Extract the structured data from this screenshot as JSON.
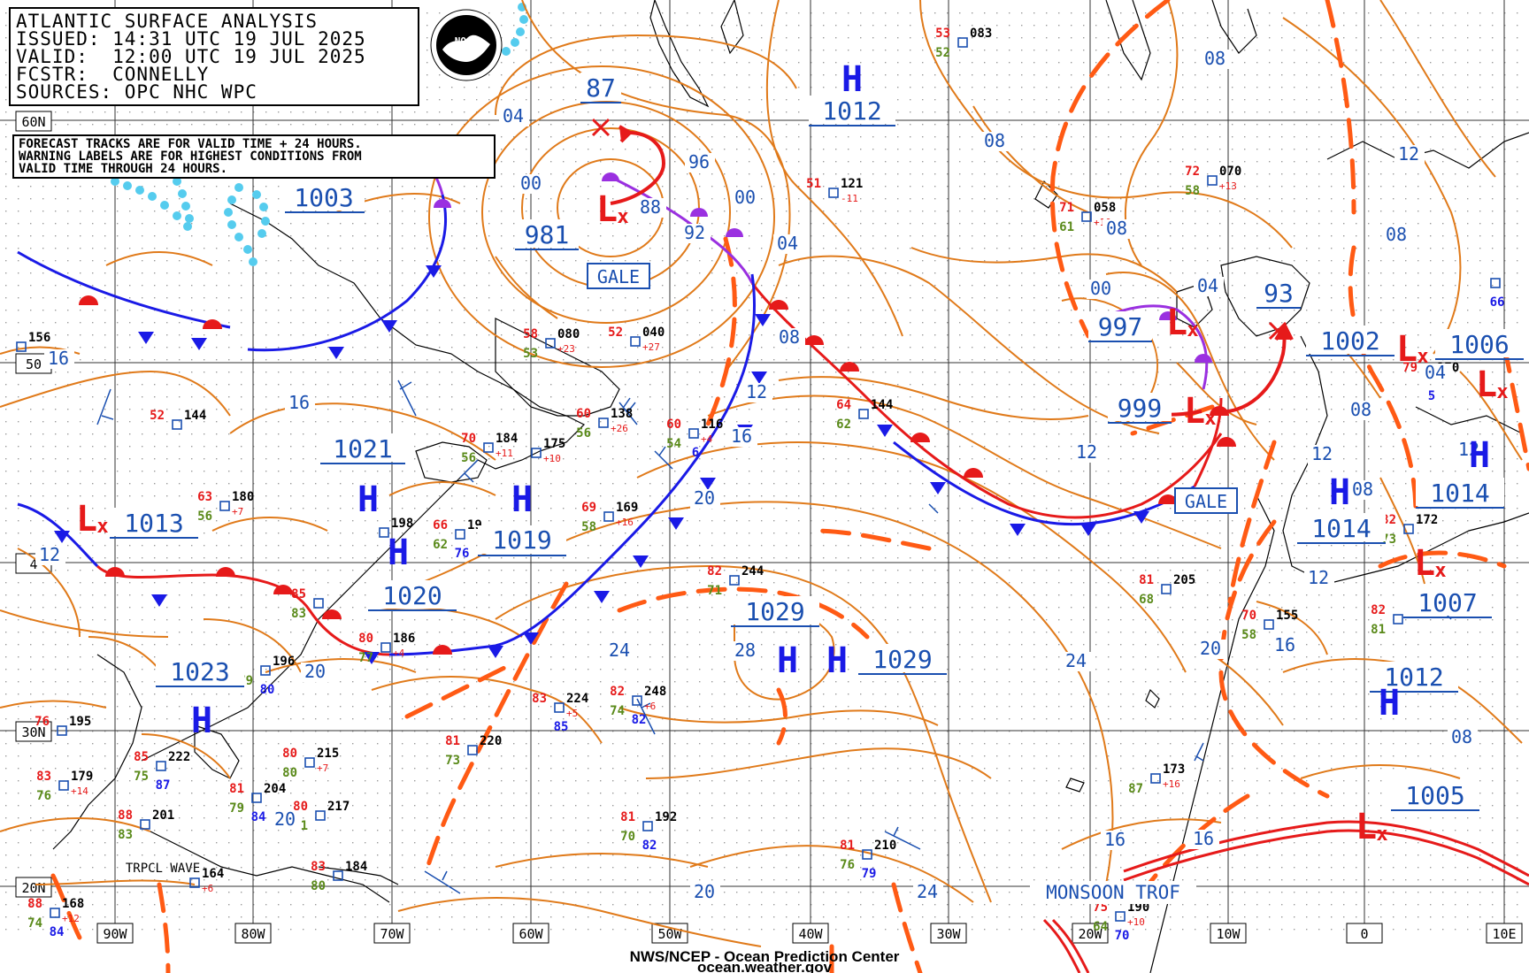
{
  "header": {
    "title": "ATLANTIC SURFACE ANALYSIS",
    "issued": "ISSUED: 14:31 UTC 19 JUL 2025",
    "valid": "VALID:  12:00 UTC 19 JUL 2025",
    "forecaster": "FCSTR:  CONNELLY",
    "sources": "SOURCES: OPC NHC WPC"
  },
  "note": {
    "line1": "FORECAST TRACKS ARE FOR VALID TIME + 24 HOURS.",
    "line2": "WARNING LABELS ARE FOR HIGHEST CONDITIONS FROM",
    "line3": "VALID TIME THROUGH 24 HOURS."
  },
  "footer": {
    "line1": "NWS/NCEP - Ocean Prediction Center",
    "line2": "ocean.weather.gov"
  },
  "logo": {
    "text": "NOAA"
  },
  "colors": {
    "isobar": "#e07a1a",
    "cold_front": "#1a1ae6",
    "warm_front": "#e61a1a",
    "occluded": "#9a30e0",
    "trough": "#ff5a14",
    "label_blue": "#1a4fb0",
    "pressure_center_blue": "#1a1ae6",
    "pressure_center_red": "#e61a1a",
    "ice_dots": "#55ccee"
  },
  "grid": {
    "lon_labels": [
      "90W",
      "80W",
      "70W",
      "60W",
      "50W",
      "40W",
      "30W",
      "20W",
      "10W",
      "0",
      "10E"
    ],
    "lat_labels": [
      "60N",
      "50",
      "4",
      "30N",
      "20N"
    ]
  },
  "highs": [
    {
      "id": "h1",
      "label": "H",
      "value": "1012"
    },
    {
      "id": "h2",
      "label": "H",
      "value": "1021"
    },
    {
      "id": "h3",
      "label": "H",
      "value": "1019"
    },
    {
      "id": "h4",
      "label": "H",
      "value": "1020"
    },
    {
      "id": "h5",
      "label": "H",
      "value": "1029"
    },
    {
      "id": "h6",
      "label": "H",
      "value": "1029"
    },
    {
      "id": "h7",
      "label": "H",
      "value": "1023"
    },
    {
      "id": "h8",
      "label": "H",
      "value": "1014"
    },
    {
      "id": "h9",
      "label": "H",
      "value": "1014"
    },
    {
      "id": "h10",
      "label": "H",
      "value": "1012"
    }
  ],
  "lows": [
    {
      "id": "l1",
      "label": "L",
      "value": "981"
    },
    {
      "id": "l2",
      "label": "L",
      "value": "997"
    },
    {
      "id": "l3",
      "label": "L",
      "value": "999"
    },
    {
      "id": "l4",
      "label": "L",
      "value": "1002"
    },
    {
      "id": "l5",
      "label": "L",
      "value": "1006"
    },
    {
      "id": "l6",
      "label": "L",
      "value": "1013"
    },
    {
      "id": "l7",
      "label": "L",
      "value": "1007"
    },
    {
      "id": "l8",
      "label": "L",
      "value": "1005"
    }
  ],
  "forecast_centers": [
    {
      "id": "f1",
      "value": "87"
    },
    {
      "id": "f2",
      "value": "93"
    },
    {
      "id": "f3",
      "value": "1003"
    }
  ],
  "warnings": [
    {
      "id": "w1",
      "label": "GALE"
    },
    {
      "id": "w2",
      "label": "GALE"
    }
  ],
  "features": {
    "monsoon": "MONSOON TROF",
    "tropical_wave": "TRPCL WAVE"
  },
  "isobar_labels": [
    "04",
    "00",
    "96",
    "88",
    "92",
    "00",
    "04",
    "08",
    "08",
    "12",
    "16",
    "16",
    "20",
    "24",
    "24",
    "28",
    "24",
    "20",
    "20",
    "20",
    "20",
    "16",
    "16",
    "12",
    "12",
    "12",
    "08",
    "08",
    "08",
    "04",
    "00",
    "12",
    "16",
    "20",
    "12",
    "16",
    "08",
    "04",
    "12",
    "08",
    "12",
    "08"
  ],
  "stations": [
    {
      "temp": "53",
      "pres": "083",
      "dew": "52"
    },
    {
      "temp": "51",
      "pres": "121",
      "tend": "-11"
    },
    {
      "temp": "71",
      "pres": "058",
      "tend": "+10",
      "dew": "61"
    },
    {
      "temp": "72",
      "pres": "070",
      "tend": "+13",
      "dew": "58"
    },
    {
      "temp": "58",
      "pres": "080",
      "tend": "+23",
      "dew": "53"
    },
    {
      "temp": "52",
      "pres": "040",
      "tend": "+27"
    },
    {
      "temp": "60",
      "pres": "138",
      "tend": "+26",
      "dew": "56"
    },
    {
      "temp": "60",
      "pres": "116",
      "tend": "+4",
      "dew": "54",
      "extra": "6"
    },
    {
      "temp": "64",
      "pres": "144",
      "dew": "62"
    },
    {
      "temp": "52",
      "pres": "144"
    },
    {
      "pres": "156"
    },
    {
      "temp": "63",
      "pres": "180",
      "tend": "+7",
      "dew": "56"
    },
    {
      "temp": "70",
      "pres": "184",
      "tend": "+11",
      "dew": "56"
    },
    {
      "pres": "175",
      "tend": "+10"
    },
    {
      "temp": "69",
      "pres": "169",
      "tend": "+16",
      "dew": "58"
    },
    {
      "temp": "66",
      "pres": "19",
      "dew": "62",
      "extra": "76"
    },
    {
      "pres": "198"
    },
    {
      "temp": "85",
      "dew": "83"
    },
    {
      "temp": "80",
      "pres": "186",
      "tend": "+4",
      "dew": "77"
    },
    {
      "temp": "82",
      "pres": "244",
      "dew": "71"
    },
    {
      "temp": "81",
      "pres": "205",
      "dew": "68"
    },
    {
      "temp": "70",
      "pres": "155",
      "dew": "58"
    },
    {
      "temp": "82",
      "pres": "172",
      "dew": "73"
    },
    {
      "temp": "82",
      "dew": "81"
    },
    {
      "temp": "76",
      "pres": "195"
    },
    {
      "pres": "196",
      "dew": "79",
      "extra": "80"
    },
    {
      "temp": "83",
      "pres": "224",
      "tend": "+5",
      "extra": "85"
    },
    {
      "temp": "82",
      "pres": "248",
      "tend": "+6",
      "dew": "74",
      "extra": "82"
    },
    {
      "temp": "81",
      "pres": "220",
      "dew": "73"
    },
    {
      "temp": "80",
      "pres": "215",
      "tend": "+7",
      "dew": "80"
    },
    {
      "temp": "85",
      "pres": "222",
      "dew": "75",
      "extra": "87"
    },
    {
      "temp": "83",
      "pres": "179",
      "tend": "+14",
      "dew": "76"
    },
    {
      "temp": "81",
      "pres": "204",
      "dew": "79",
      "extra": "84"
    },
    {
      "temp": "80",
      "pres": "217",
      "dew": "81"
    },
    {
      "temp": "88",
      "pres": "201",
      "dew": "83"
    },
    {
      "temp": "81",
      "pres": "192",
      "dew": "70",
      "extra": "82"
    },
    {
      "temp": "81",
      "pres": "210",
      "dew": "76",
      "extra": "79"
    },
    {
      "temp": "83",
      "pres": "184",
      "dew": "80"
    },
    {
      "temp": "88",
      "pres": "168",
      "tend": "+12",
      "dew": "74",
      "extra": "84"
    },
    {
      "pres": "164",
      "tend": "+6"
    },
    {
      "pres": "173",
      "tend": "+16",
      "dew": "87"
    },
    {
      "temp": "75",
      "pres": "190",
      "tend": "+10",
      "dew": "64",
      "extra": "70"
    },
    {
      "temp": "79",
      "pres": "170",
      "extra": "5"
    },
    {
      "extra": "66"
    }
  ]
}
